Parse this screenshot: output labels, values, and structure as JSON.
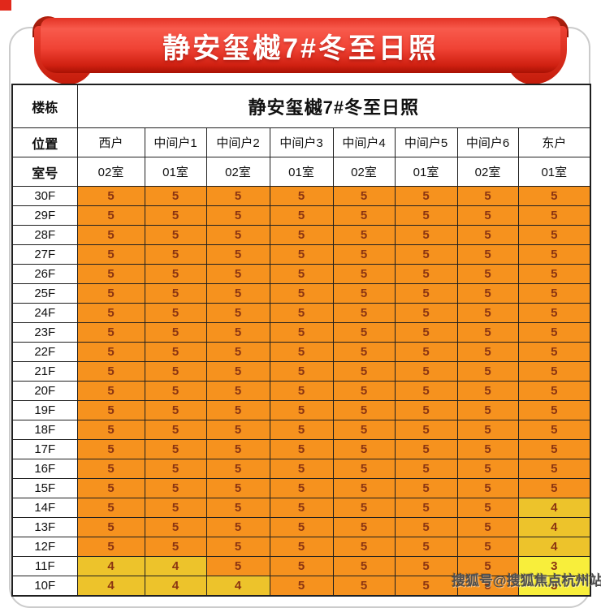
{
  "banner": {
    "title": "静安玺樾7#冬至日照"
  },
  "watermark": {
    "text": "搜狐号@搜狐焦点杭州站"
  },
  "table": {
    "corner_label": "楼栋",
    "span_title": "静安玺樾7#冬至日照",
    "position_label": "位置",
    "positions": [
      "西户",
      "中间户1",
      "中间户2",
      "中间户3",
      "中间户4",
      "中间户5",
      "中间户6",
      "东户"
    ],
    "room_label": "室号",
    "rooms": [
      "02室",
      "01室",
      "02室",
      "01室",
      "02室",
      "01室",
      "02室",
      "01室"
    ]
  },
  "chart_data": {
    "type": "table",
    "title": "静安玺樾7#冬至日照",
    "columns_positions": [
      "西户",
      "中间户1",
      "中间户2",
      "中间户3",
      "中间户4",
      "中间户5",
      "中间户6",
      "东户"
    ],
    "columns_rooms": [
      "02室",
      "01室",
      "02室",
      "01室",
      "02室",
      "01室",
      "02室",
      "01室"
    ],
    "rows": [
      {
        "label": "30F",
        "values": [
          5,
          5,
          5,
          5,
          5,
          5,
          5,
          5
        ]
      },
      {
        "label": "29F",
        "values": [
          5,
          5,
          5,
          5,
          5,
          5,
          5,
          5
        ]
      },
      {
        "label": "28F",
        "values": [
          5,
          5,
          5,
          5,
          5,
          5,
          5,
          5
        ]
      },
      {
        "label": "27F",
        "values": [
          5,
          5,
          5,
          5,
          5,
          5,
          5,
          5
        ]
      },
      {
        "label": "26F",
        "values": [
          5,
          5,
          5,
          5,
          5,
          5,
          5,
          5
        ]
      },
      {
        "label": "25F",
        "values": [
          5,
          5,
          5,
          5,
          5,
          5,
          5,
          5
        ]
      },
      {
        "label": "24F",
        "values": [
          5,
          5,
          5,
          5,
          5,
          5,
          5,
          5
        ]
      },
      {
        "label": "23F",
        "values": [
          5,
          5,
          5,
          5,
          5,
          5,
          5,
          5
        ]
      },
      {
        "label": "22F",
        "values": [
          5,
          5,
          5,
          5,
          5,
          5,
          5,
          5
        ]
      },
      {
        "label": "21F",
        "values": [
          5,
          5,
          5,
          5,
          5,
          5,
          5,
          5
        ]
      },
      {
        "label": "20F",
        "values": [
          5,
          5,
          5,
          5,
          5,
          5,
          5,
          5
        ]
      },
      {
        "label": "19F",
        "values": [
          5,
          5,
          5,
          5,
          5,
          5,
          5,
          5
        ]
      },
      {
        "label": "18F",
        "values": [
          5,
          5,
          5,
          5,
          5,
          5,
          5,
          5
        ]
      },
      {
        "label": "17F",
        "values": [
          5,
          5,
          5,
          5,
          5,
          5,
          5,
          5
        ]
      },
      {
        "label": "16F",
        "values": [
          5,
          5,
          5,
          5,
          5,
          5,
          5,
          5
        ]
      },
      {
        "label": "15F",
        "values": [
          5,
          5,
          5,
          5,
          5,
          5,
          5,
          5
        ]
      },
      {
        "label": "14F",
        "values": [
          5,
          5,
          5,
          5,
          5,
          5,
          5,
          4
        ]
      },
      {
        "label": "13F",
        "values": [
          5,
          5,
          5,
          5,
          5,
          5,
          5,
          4
        ]
      },
      {
        "label": "12F",
        "values": [
          5,
          5,
          5,
          5,
          5,
          5,
          5,
          4
        ]
      },
      {
        "label": "11F",
        "values": [
          4,
          4,
          5,
          5,
          5,
          5,
          5,
          3
        ]
      },
      {
        "label": "10F",
        "values": [
          4,
          4,
          4,
          5,
          5,
          5,
          5,
          3
        ]
      }
    ]
  },
  "colors": {
    "value_5_bg": "#F6921E",
    "value_4_bg": "#EDC32B",
    "value_3_bg": "#F8EE3B",
    "value_text": "#8B3512",
    "ribbon_red": "#EE392B",
    "ribbon_dark": "#9E1B0E",
    "border": "#1F1F1F"
  }
}
